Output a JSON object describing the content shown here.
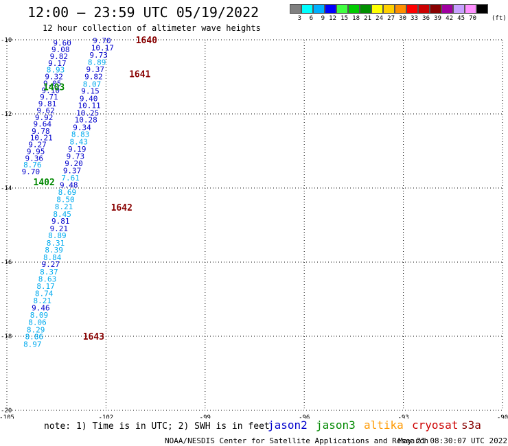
{
  "title": "12:00 – 23:59 UTC 05/19/2022",
  "subtitle": "12 hour collection of altimeter wave heights",
  "legend": {
    "unit": "(ft)",
    "bins": [
      {
        "label": "3",
        "color": "#808080"
      },
      {
        "label": "6",
        "color": "#00ffff"
      },
      {
        "label": "9",
        "color": "#00b0ff"
      },
      {
        "label": "12",
        "color": "#0000ff"
      },
      {
        "label": "15",
        "color": "#40ff40"
      },
      {
        "label": "18",
        "color": "#00cc00"
      },
      {
        "label": "21",
        "color": "#009000"
      },
      {
        "label": "24",
        "color": "#ffff00"
      },
      {
        "label": "27",
        "color": "#ffd000"
      },
      {
        "label": "30",
        "color": "#ff9000"
      },
      {
        "label": "33",
        "color": "#ff0000"
      },
      {
        "label": "36",
        "color": "#cc0000"
      },
      {
        "label": "39",
        "color": "#880000"
      },
      {
        "label": "42",
        "color": "#a000a0"
      },
      {
        "label": "45",
        "color": "#c8a0ff"
      },
      {
        "label": "70",
        "color": "#ff90ff"
      },
      {
        "label": "",
        "color": "#000000"
      }
    ]
  },
  "map": {
    "lon_range": [
      -105,
      -90
    ],
    "lat_range": [
      -20,
      -10
    ],
    "lon_ticks": [
      "-105",
      "-102",
      "-99",
      "-96",
      "-93",
      "-90"
    ],
    "lat_ticks": [
      "-10",
      "-12",
      "-14",
      "-16",
      "-18",
      "-20"
    ]
  },
  "tracks": [
    {
      "sat": "jason3",
      "time_labels": [
        {
          "text": "1403",
          "lon": -103.9,
          "lat": -11.27
        },
        {
          "text": "1402",
          "lon": -104.2,
          "lat": -13.83
        }
      ],
      "points": [
        {
          "lon": -103.6,
          "lat": -10.08,
          "value": "9.60"
        },
        {
          "lon": -103.65,
          "lat": -10.26,
          "value": "9.08"
        },
        {
          "lon": -103.7,
          "lat": -10.44,
          "value": "9.82"
        },
        {
          "lon": -103.75,
          "lat": -10.63,
          "value": "9.17"
        },
        {
          "lon": -103.8,
          "lat": -10.81,
          "value": "8.93"
        },
        {
          "lon": -103.85,
          "lat": -10.99,
          "value": "9.32"
        },
        {
          "lon": -103.9,
          "lat": -11.18,
          "value": "9.05"
        },
        {
          "lon": -103.95,
          "lat": -11.36,
          "value": "9.10"
        },
        {
          "lon": -104.0,
          "lat": -11.54,
          "value": "9.71"
        },
        {
          "lon": -104.05,
          "lat": -11.72,
          "value": "9.81"
        },
        {
          "lon": -104.1,
          "lat": -11.91,
          "value": "9.62"
        },
        {
          "lon": -104.15,
          "lat": -12.09,
          "value": "9.92"
        },
        {
          "lon": -104.2,
          "lat": -12.27,
          "value": "9.64"
        },
        {
          "lon": -104.25,
          "lat": -12.46,
          "value": "9.78"
        },
        {
          "lon": -104.3,
          "lat": -12.64,
          "value": "10.21"
        },
        {
          "lon": -104.35,
          "lat": -12.82,
          "value": "9.27"
        },
        {
          "lon": -104.4,
          "lat": -13.01,
          "value": "9.95"
        },
        {
          "lon": -104.45,
          "lat": -13.19,
          "value": "9.36"
        },
        {
          "lon": -104.5,
          "lat": -13.37,
          "value": "8.76"
        },
        {
          "lon": -104.55,
          "lat": -13.56,
          "value": "9.70"
        }
      ]
    },
    {
      "sat": "cryosat",
      "time_labels": [
        {
          "text": "1640",
          "lon": -101.1,
          "lat": -10.0
        },
        {
          "text": "1641",
          "lon": -101.3,
          "lat": -10.92
        },
        {
          "text": "1642",
          "lon": -101.85,
          "lat": -14.52
        },
        {
          "text": "1643",
          "lon": -102.7,
          "lat": -18.0
        }
      ],
      "points": [
        {
          "lon": -102.4,
          "lat": -10.02,
          "value": "9.70"
        },
        {
          "lon": -102.45,
          "lat": -10.21,
          "value": "10.17"
        },
        {
          "lon": -102.5,
          "lat": -10.41,
          "value": "9.73"
        },
        {
          "lon": -102.55,
          "lat": -10.6,
          "value": "8.89"
        },
        {
          "lon": -102.6,
          "lat": -10.8,
          "value": "9.37"
        },
        {
          "lon": -102.65,
          "lat": -10.99,
          "value": "9.82"
        },
        {
          "lon": -102.7,
          "lat": -11.19,
          "value": "8.07"
        },
        {
          "lon": -102.75,
          "lat": -11.38,
          "value": "9.15"
        },
        {
          "lon": -102.8,
          "lat": -11.58,
          "value": "9.40"
        },
        {
          "lon": -102.85,
          "lat": -11.77,
          "value": "10.11"
        },
        {
          "lon": -102.9,
          "lat": -11.97,
          "value": "10.25"
        },
        {
          "lon": -102.95,
          "lat": -12.16,
          "value": "10.28"
        },
        {
          "lon": -103.0,
          "lat": -12.36,
          "value": "9.34"
        },
        {
          "lon": -103.05,
          "lat": -12.55,
          "value": "8.83"
        },
        {
          "lon": -103.1,
          "lat": -12.75,
          "value": "8.43"
        },
        {
          "lon": -103.15,
          "lat": -12.94,
          "value": "9.19"
        },
        {
          "lon": -103.2,
          "lat": -13.14,
          "value": "9.73"
        },
        {
          "lon": -103.25,
          "lat": -13.33,
          "value": "9.20"
        },
        {
          "lon": -103.3,
          "lat": -13.53,
          "value": "9.37"
        },
        {
          "lon": -103.35,
          "lat": -13.72,
          "value": "7.61"
        },
        {
          "lon": -103.4,
          "lat": -13.92,
          "value": "9.48"
        },
        {
          "lon": -103.45,
          "lat": -14.11,
          "value": "8.69"
        },
        {
          "lon": -103.5,
          "lat": -14.31,
          "value": "8.50"
        },
        {
          "lon": -103.55,
          "lat": -14.5,
          "value": "8.21"
        },
        {
          "lon": -103.6,
          "lat": -14.7,
          "value": "8.45"
        },
        {
          "lon": -103.65,
          "lat": -14.89,
          "value": "9.81"
        },
        {
          "lon": -103.7,
          "lat": -15.09,
          "value": "9.21"
        },
        {
          "lon": -103.75,
          "lat": -15.28,
          "value": "8.89"
        },
        {
          "lon": -103.8,
          "lat": -15.48,
          "value": "8.31"
        },
        {
          "lon": -103.85,
          "lat": -15.67,
          "value": "8.39"
        },
        {
          "lon": -103.9,
          "lat": -15.87,
          "value": "8.84"
        },
        {
          "lon": -103.95,
          "lat": -16.06,
          "value": "9.27"
        },
        {
          "lon": -104.0,
          "lat": -16.26,
          "value": "8.37"
        },
        {
          "lon": -104.05,
          "lat": -16.45,
          "value": "8.63"
        },
        {
          "lon": -104.1,
          "lat": -16.65,
          "value": "8.17"
        },
        {
          "lon": -104.15,
          "lat": -16.84,
          "value": "8.74"
        },
        {
          "lon": -104.2,
          "lat": -17.04,
          "value": "8.21"
        },
        {
          "lon": -104.25,
          "lat": -17.23,
          "value": "9.46"
        },
        {
          "lon": -104.3,
          "lat": -17.43,
          "value": "8.09"
        },
        {
          "lon": -104.35,
          "lat": -17.62,
          "value": "8.06"
        },
        {
          "lon": -104.4,
          "lat": -17.82,
          "value": "8.29"
        },
        {
          "lon": -104.45,
          "lat": -18.01,
          "value": "8.86"
        },
        {
          "lon": -104.5,
          "lat": -18.21,
          "value": "8.97"
        }
      ]
    }
  ],
  "colors": {
    "jason2": "#0000cc",
    "jason3": "#008800",
    "altika": "#ff9900",
    "cryosat": "#cc0000",
    "s3a": "#880000",
    "time_label_jason3": "#008800",
    "time_label_cryosat": "#880000",
    "value_blue": "#0000cc",
    "value_cyan": "#00aaee"
  },
  "footer": {
    "note": "note: 1) Time is in UTC; 2) SWH is in feet",
    "satellites": [
      "jason2",
      "jason3",
      "altika",
      "cryosat",
      "s3a"
    ],
    "credit": "NOAA/NESDIS Center for Satellite Applications and Research",
    "timestamp": "May 21 08:30:07 UTC 2022"
  }
}
